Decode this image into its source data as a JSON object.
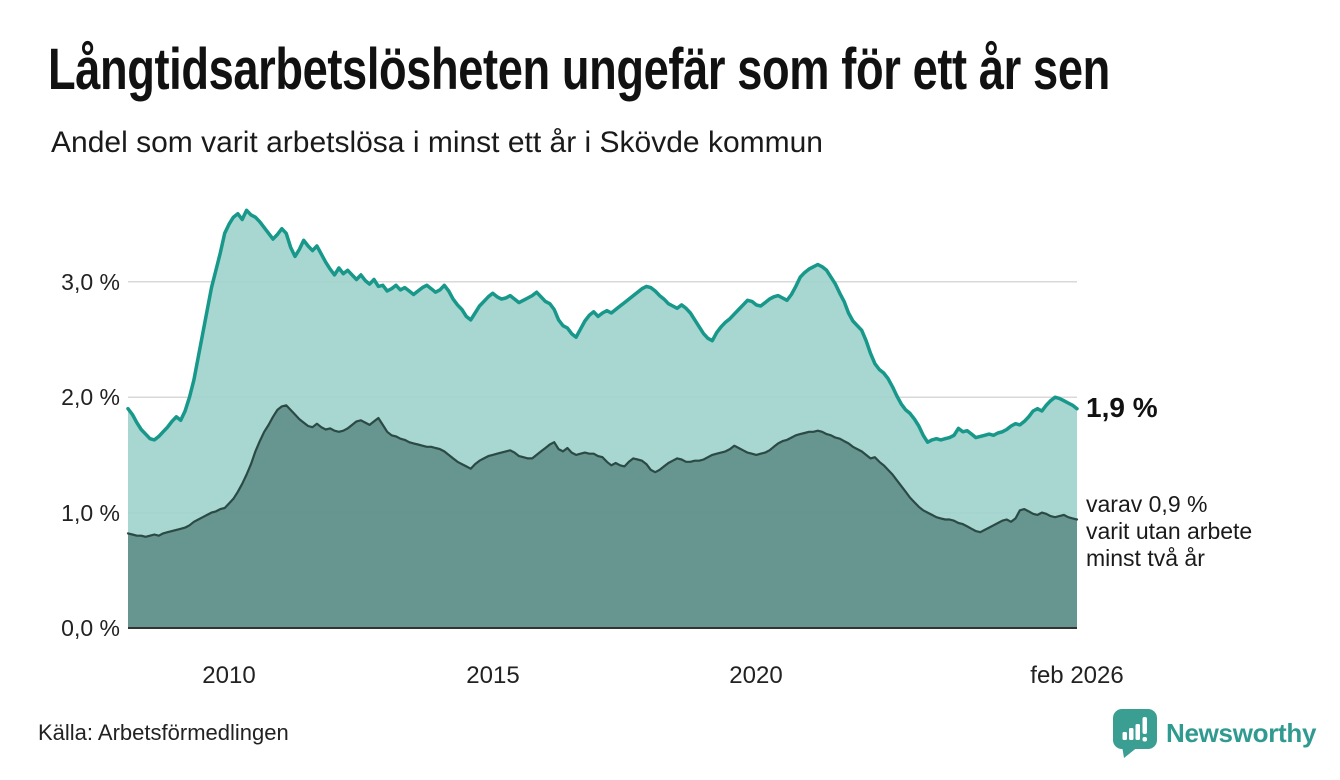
{
  "header": {
    "title": "Långtidsarbetslösheten ungefär som för ett år sen",
    "subtitle": "Andel som varit arbetslösa i minst ett år i Skövde kommun"
  },
  "annotations": {
    "latest_total": "1,9 %",
    "latest_sub_lines": [
      "varav 0,9 %",
      "varit utan arbete",
      "minst två år"
    ]
  },
  "source_label": "Källa: Arbetsförmedlingen",
  "branding": {
    "name": "Newsworthy",
    "icon": "bar-chart-speech-bubble-icon",
    "color": "#3b9e93"
  },
  "chart_data": {
    "type": "area",
    "title": "Långtidsarbetslösheten ungefär som för ett år sen",
    "subtitle": "Andel som varit arbetslösa i minst ett år i Skövde kommun",
    "unit": "%",
    "frequency": "monthly",
    "x_start": "2008-02",
    "x_end": "2026-02",
    "x_tick_labels": [
      "2010",
      "2015",
      "2020",
      "feb 2026"
    ],
    "x_tick_indices": [
      23,
      83,
      143,
      216
    ],
    "y_tick_labels": [
      "0,0 %",
      "1,0 %",
      "2,0 %",
      "3,0 %"
    ],
    "y_tick_values": [
      0,
      1,
      2,
      3
    ],
    "grid_values": [
      1,
      2,
      3
    ],
    "ylim": [
      0,
      3.8
    ],
    "grid": true,
    "legend_position": "right-annotations",
    "series": [
      {
        "name": "Arbetslösa minst ett år",
        "end_label": "1,9 %",
        "stroke": "#17988a",
        "fill": "#9ed2cb",
        "width": 3.5,
        "values": [
          1.9,
          1.85,
          1.78,
          1.72,
          1.68,
          1.64,
          1.63,
          1.66,
          1.7,
          1.74,
          1.79,
          1.83,
          1.8,
          1.88,
          2.0,
          2.15,
          2.35,
          2.55,
          2.75,
          2.95,
          3.1,
          3.25,
          3.42,
          3.5,
          3.56,
          3.59,
          3.54,
          3.62,
          3.58,
          3.56,
          3.52,
          3.47,
          3.42,
          3.37,
          3.41,
          3.46,
          3.42,
          3.3,
          3.22,
          3.28,
          3.36,
          3.31,
          3.27,
          3.31,
          3.24,
          3.17,
          3.11,
          3.06,
          3.12,
          3.07,
          3.1,
          3.06,
          3.02,
          3.06,
          3.01,
          2.98,
          3.02,
          2.96,
          2.97,
          2.92,
          2.94,
          2.97,
          2.93,
          2.95,
          2.92,
          2.89,
          2.92,
          2.95,
          2.97,
          2.94,
          2.91,
          2.93,
          2.97,
          2.92,
          2.85,
          2.8,
          2.76,
          2.7,
          2.67,
          2.73,
          2.79,
          2.83,
          2.87,
          2.9,
          2.87,
          2.85,
          2.86,
          2.88,
          2.85,
          2.82,
          2.84,
          2.86,
          2.88,
          2.91,
          2.87,
          2.83,
          2.81,
          2.76,
          2.67,
          2.62,
          2.6,
          2.55,
          2.52,
          2.59,
          2.66,
          2.71,
          2.74,
          2.7,
          2.73,
          2.75,
          2.73,
          2.76,
          2.79,
          2.82,
          2.85,
          2.88,
          2.91,
          2.94,
          2.96,
          2.95,
          2.92,
          2.88,
          2.85,
          2.81,
          2.79,
          2.77,
          2.8,
          2.77,
          2.73,
          2.67,
          2.61,
          2.55,
          2.51,
          2.49,
          2.56,
          2.61,
          2.65,
          2.68,
          2.72,
          2.76,
          2.8,
          2.84,
          2.83,
          2.8,
          2.79,
          2.82,
          2.85,
          2.87,
          2.88,
          2.86,
          2.84,
          2.89,
          2.96,
          3.04,
          3.08,
          3.11,
          3.13,
          3.15,
          3.13,
          3.1,
          3.04,
          2.98,
          2.9,
          2.83,
          2.73,
          2.66,
          2.62,
          2.58,
          2.49,
          2.38,
          2.29,
          2.24,
          2.21,
          2.16,
          2.09,
          2.01,
          1.94,
          1.89,
          1.86,
          1.81,
          1.75,
          1.67,
          1.61,
          1.63,
          1.64,
          1.63,
          1.64,
          1.65,
          1.67,
          1.73,
          1.7,
          1.71,
          1.68,
          1.65,
          1.66,
          1.67,
          1.68,
          1.67,
          1.69,
          1.7,
          1.72,
          1.75,
          1.77,
          1.76,
          1.79,
          1.83,
          1.88,
          1.9,
          1.88,
          1.93,
          1.97,
          2.0,
          1.99,
          1.97,
          1.95,
          1.93,
          1.9
        ]
      },
      {
        "name": "varav utan arbete minst två år",
        "end_label": "0,9 %",
        "stroke": "#2b4a46",
        "fill": "#5f8e87",
        "width": 2.2,
        "values": [
          0.82,
          0.81,
          0.8,
          0.8,
          0.79,
          0.8,
          0.81,
          0.8,
          0.82,
          0.83,
          0.84,
          0.85,
          0.86,
          0.87,
          0.89,
          0.92,
          0.94,
          0.96,
          0.98,
          1.0,
          1.01,
          1.03,
          1.04,
          1.08,
          1.12,
          1.18,
          1.25,
          1.33,
          1.42,
          1.53,
          1.62,
          1.7,
          1.76,
          1.83,
          1.89,
          1.92,
          1.93,
          1.89,
          1.85,
          1.81,
          1.78,
          1.75,
          1.74,
          1.77,
          1.74,
          1.72,
          1.73,
          1.71,
          1.7,
          1.71,
          1.73,
          1.76,
          1.79,
          1.8,
          1.78,
          1.76,
          1.79,
          1.82,
          1.76,
          1.7,
          1.67,
          1.66,
          1.64,
          1.63,
          1.61,
          1.6,
          1.59,
          1.58,
          1.57,
          1.57,
          1.56,
          1.55,
          1.53,
          1.5,
          1.47,
          1.44,
          1.42,
          1.4,
          1.38,
          1.42,
          1.45,
          1.47,
          1.49,
          1.5,
          1.51,
          1.52,
          1.53,
          1.54,
          1.52,
          1.49,
          1.48,
          1.47,
          1.47,
          1.5,
          1.53,
          1.56,
          1.59,
          1.61,
          1.55,
          1.53,
          1.56,
          1.52,
          1.5,
          1.51,
          1.52,
          1.51,
          1.51,
          1.49,
          1.48,
          1.44,
          1.41,
          1.43,
          1.41,
          1.4,
          1.44,
          1.47,
          1.46,
          1.45,
          1.42,
          1.37,
          1.35,
          1.37,
          1.4,
          1.43,
          1.45,
          1.47,
          1.46,
          1.44,
          1.44,
          1.45,
          1.45,
          1.46,
          1.48,
          1.5,
          1.51,
          1.52,
          1.53,
          1.55,
          1.58,
          1.56,
          1.54,
          1.52,
          1.51,
          1.5,
          1.51,
          1.52,
          1.54,
          1.57,
          1.6,
          1.62,
          1.63,
          1.65,
          1.67,
          1.68,
          1.69,
          1.7,
          1.7,
          1.71,
          1.7,
          1.68,
          1.67,
          1.65,
          1.64,
          1.62,
          1.6,
          1.57,
          1.55,
          1.53,
          1.5,
          1.47,
          1.48,
          1.44,
          1.41,
          1.37,
          1.33,
          1.28,
          1.23,
          1.18,
          1.13,
          1.09,
          1.05,
          1.02,
          1.0,
          0.98,
          0.96,
          0.95,
          0.94,
          0.94,
          0.93,
          0.91,
          0.9,
          0.88,
          0.86,
          0.84,
          0.83,
          0.85,
          0.87,
          0.89,
          0.91,
          0.93,
          0.94,
          0.92,
          0.95,
          1.02,
          1.03,
          1.01,
          0.99,
          0.98,
          1.0,
          0.99,
          0.97,
          0.96,
          0.97,
          0.98,
          0.96,
          0.95,
          0.94
        ]
      }
    ]
  }
}
